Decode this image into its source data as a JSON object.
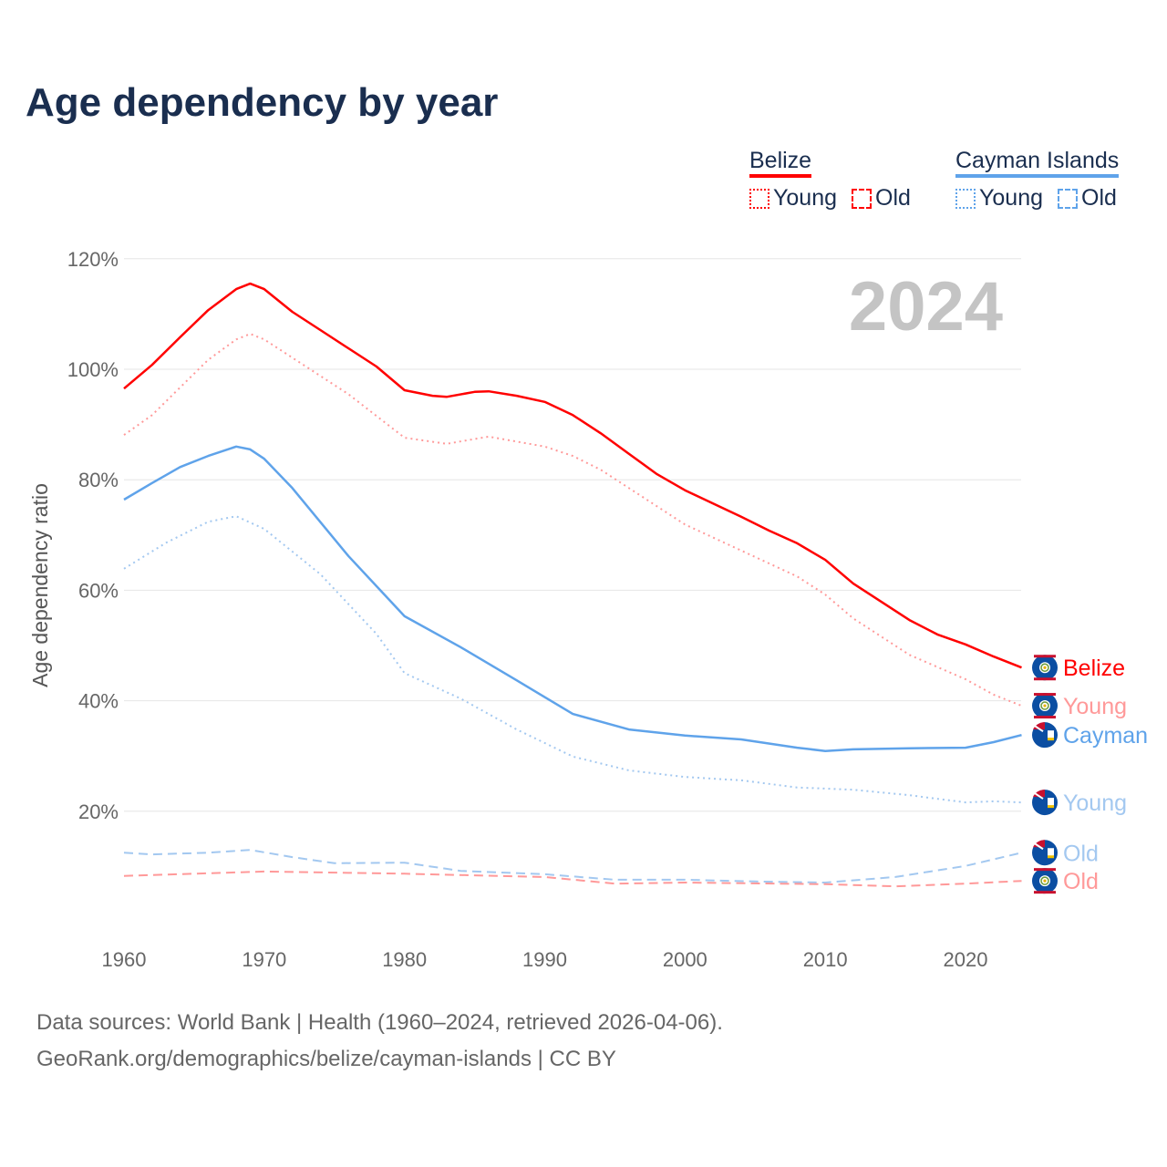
{
  "title": "Age dependency by year",
  "legend": {
    "groups": [
      {
        "name": "Belize",
        "color": "#ff0000",
        "young_label": "Young",
        "old_label": "Old",
        "light": "#ff9999"
      },
      {
        "name": "Cayman Islands",
        "color": "#5fa3ea",
        "young_label": "Young",
        "old_label": "Old",
        "light": "#a3c8f0"
      }
    ]
  },
  "year_watermark": "2024",
  "footer": {
    "line1": "Data sources: World Bank | Health (1960–2024, retrieved 2026-04-06).",
    "line2": "GeoRank.org/demographics/belize/cayman-islands | CC BY"
  },
  "chart_data": {
    "type": "line",
    "title": "Age dependency by year",
    "xlabel": "",
    "ylabel": "Age dependency ratio",
    "xlim": [
      1960,
      2024
    ],
    "ylim": [
      0,
      120
    ],
    "xticks": [
      "1960",
      "1970",
      "1980",
      "1990",
      "2000",
      "2010",
      "2020"
    ],
    "yticks": [
      "20%",
      "40%",
      "60%",
      "80%",
      "100%",
      "120%"
    ],
    "grid": true,
    "series": [
      {
        "name": "Belize",
        "end_label": "Belize",
        "color": "#ff0000",
        "dash": "solid",
        "flag": "belize",
        "x": [
          1960,
          1962,
          1964,
          1966,
          1968,
          1969,
          1970,
          1972,
          1974,
          1976,
          1978,
          1980,
          1982,
          1983,
          1985,
          1986,
          1988,
          1990,
          1992,
          1994,
          1996,
          1998,
          2000,
          2002,
          2004,
          2006,
          2008,
          2010,
          2012,
          2014,
          2016,
          2018,
          2020,
          2022,
          2024
        ],
        "y": [
          96.5,
          100.8,
          105.8,
          110.7,
          114.5,
          115.5,
          114.5,
          110.4,
          107.1,
          103.8,
          100.5,
          96.2,
          95.2,
          95.0,
          95.9,
          96.0,
          95.2,
          94.1,
          91.7,
          88.4,
          84.7,
          81.0,
          78.1,
          75.7,
          73.3,
          70.8,
          68.5,
          65.5,
          61.2,
          57.9,
          54.6,
          52.0,
          50.2,
          48.0,
          46.0
        ]
      },
      {
        "name": "Belize Young",
        "end_label": "Young",
        "color": "#ff9999",
        "dash": "dotted",
        "flag": "belize",
        "x": [
          1960,
          1962,
          1964,
          1966,
          1968,
          1969,
          1970,
          1972,
          1976,
          1980,
          1983,
          1986,
          1990,
          1992,
          1994,
          1996,
          2000,
          2004,
          2008,
          2010,
          2012,
          2016,
          2020,
          2022,
          2024
        ],
        "y": [
          88.1,
          91.7,
          96.7,
          101.7,
          105.4,
          106.4,
          105.4,
          102.1,
          95.5,
          87.6,
          86.5,
          87.8,
          86.0,
          84.3,
          81.8,
          78.5,
          71.9,
          67.2,
          62.5,
          59.2,
          54.9,
          48.3,
          43.9,
          41.1,
          39.1
        ]
      },
      {
        "name": "Cayman Islands",
        "end_label": "Cayman",
        "color": "#5fa3ea",
        "dash": "solid",
        "flag": "cayman",
        "x": [
          1960,
          1962,
          1964,
          1966,
          1968,
          1969,
          1970,
          1972,
          1976,
          1980,
          1984,
          1988,
          1992,
          1996,
          2000,
          2004,
          2008,
          2010,
          2012,
          2016,
          2020,
          2022,
          2024
        ],
        "y": [
          76.4,
          79.4,
          82.3,
          84.3,
          86.0,
          85.5,
          83.8,
          78.5,
          66.2,
          55.3,
          49.7,
          43.7,
          37.6,
          34.8,
          33.7,
          33.0,
          31.5,
          30.9,
          31.2,
          31.4,
          31.5,
          32.5,
          33.8
        ]
      },
      {
        "name": "Cayman Islands Young",
        "end_label": "Young",
        "color": "#a3c8f0",
        "dash": "dotted",
        "flag": "cayman",
        "x": [
          1960,
          1963,
          1966,
          1968,
          1970,
          1974,
          1978,
          1980,
          1984,
          1988,
          1992,
          1996,
          2000,
          2004,
          2008,
          2012,
          2016,
          2020,
          2022,
          2024
        ],
        "y": [
          63.9,
          68.6,
          72.4,
          73.4,
          71.1,
          62.9,
          52.1,
          45.0,
          40.4,
          34.8,
          29.9,
          27.4,
          26.2,
          25.6,
          24.3,
          23.9,
          22.9,
          21.6,
          21.8,
          21.6
        ]
      },
      {
        "name": "Cayman Islands Old",
        "end_label": "Old",
        "color": "#a3c8f0",
        "dash": "dashed",
        "flag": "cayman",
        "x": [
          1960,
          1962,
          1966,
          1969,
          1972,
          1975,
          1980,
          1984,
          1990,
          1995,
          2000,
          2005,
          2010,
          2015,
          2020,
          2024
        ],
        "y": [
          12.5,
          12.2,
          12.5,
          13.0,
          11.7,
          10.6,
          10.7,
          9.2,
          8.6,
          7.6,
          7.6,
          7.3,
          7.1,
          8.1,
          10.1,
          12.5
        ]
      },
      {
        "name": "Belize Old",
        "end_label": "Old",
        "color": "#ff9999",
        "dash": "dashed",
        "flag": "belize",
        "x": [
          1960,
          1970,
          1980,
          1990,
          1995,
          2000,
          2010,
          2015,
          2020,
          2024
        ],
        "y": [
          8.3,
          9.1,
          8.7,
          8.1,
          6.9,
          7.1,
          6.8,
          6.4,
          6.9,
          7.4
        ]
      }
    ]
  }
}
